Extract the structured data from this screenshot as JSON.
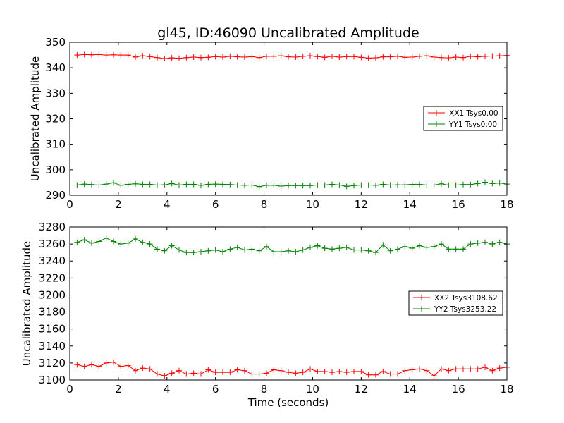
{
  "chart_data": [
    {
      "type": "line",
      "title": "gl45, ID:46090 Uncalibrated Amplitude",
      "xlabel": "",
      "ylabel": "Uncalibrated Amplitude",
      "xlim": [
        0,
        18
      ],
      "ylim": [
        290,
        350
      ],
      "xticks": [
        0,
        2,
        4,
        6,
        8,
        10,
        12,
        14,
        16,
        18
      ],
      "yticks": [
        290,
        300,
        310,
        320,
        330,
        340,
        350
      ],
      "grid": false,
      "legend_position": "center-right",
      "x": [
        0.3,
        0.6,
        0.9,
        1.2,
        1.5,
        1.8,
        2.1,
        2.4,
        2.7,
        3.0,
        3.3,
        3.6,
        3.9,
        4.2,
        4.5,
        4.8,
        5.1,
        5.4,
        5.7,
        6.0,
        6.3,
        6.6,
        6.9,
        7.2,
        7.5,
        7.8,
        8.1,
        8.4,
        8.7,
        9.0,
        9.3,
        9.6,
        9.9,
        10.2,
        10.5,
        10.8,
        11.1,
        11.4,
        11.7,
        12.0,
        12.3,
        12.6,
        12.9,
        13.2,
        13.5,
        13.8,
        14.1,
        14.4,
        14.7,
        15.0,
        15.3,
        15.6,
        15.9,
        16.2,
        16.5,
        16.8,
        17.1,
        17.4,
        17.7,
        18.0
      ],
      "series": [
        {
          "name": "XX1 Tsys0.00",
          "color": "#ff0000",
          "values": [
            345.0,
            345.2,
            345.1,
            345.2,
            345.0,
            345.1,
            345.0,
            345.0,
            344.2,
            344.7,
            344.4,
            344.0,
            343.6,
            343.9,
            343.7,
            344.0,
            344.2,
            344.0,
            344.1,
            344.4,
            344.2,
            344.5,
            344.3,
            344.2,
            344.4,
            344.0,
            344.5,
            344.5,
            344.7,
            344.3,
            344.2,
            344.5,
            344.7,
            344.4,
            344.1,
            344.5,
            344.2,
            344.4,
            344.4,
            344.1,
            343.8,
            343.9,
            344.3,
            344.3,
            344.5,
            344.1,
            344.2,
            344.5,
            344.7,
            344.2,
            344.0,
            343.9,
            344.2,
            344.0,
            344.5,
            344.3,
            344.5,
            344.6,
            344.7,
            344.8
          ]
        },
        {
          "name": "YY1 Tsys0.00",
          "color": "#008000",
          "values": [
            294.0,
            294.4,
            294.2,
            294.0,
            294.4,
            294.9,
            293.9,
            294.3,
            294.5,
            294.3,
            294.3,
            294.0,
            294.1,
            294.6,
            294.0,
            294.3,
            294.3,
            293.9,
            294.3,
            294.4,
            294.3,
            294.2,
            294.0,
            293.9,
            294.0,
            293.4,
            293.9,
            293.9,
            293.6,
            293.8,
            293.8,
            293.8,
            293.8,
            294.0,
            294.0,
            294.3,
            294.0,
            293.5,
            293.8,
            294.0,
            294.0,
            293.9,
            294.3,
            294.0,
            294.1,
            294.1,
            294.3,
            294.3,
            294.0,
            294.0,
            294.5,
            294.0,
            294.0,
            294.2,
            294.2,
            294.6,
            295.1,
            294.6,
            294.8,
            294.4
          ]
        }
      ]
    },
    {
      "type": "line",
      "title": "",
      "xlabel": "Time (seconds)",
      "ylabel": "Uncalibrated Amplitude",
      "xlim": [
        0,
        18
      ],
      "ylim": [
        3100,
        3280
      ],
      "xticks": [
        0,
        2,
        4,
        6,
        8,
        10,
        12,
        14,
        16,
        18
      ],
      "yticks": [
        3100,
        3120,
        3140,
        3160,
        3180,
        3200,
        3220,
        3240,
        3260,
        3280
      ],
      "grid": false,
      "legend_position": "center-right",
      "x": [
        0.3,
        0.6,
        0.9,
        1.2,
        1.5,
        1.8,
        2.1,
        2.4,
        2.7,
        3.0,
        3.3,
        3.6,
        3.9,
        4.2,
        4.5,
        4.8,
        5.1,
        5.4,
        5.7,
        6.0,
        6.3,
        6.6,
        6.9,
        7.2,
        7.5,
        7.8,
        8.1,
        8.4,
        8.7,
        9.0,
        9.3,
        9.6,
        9.9,
        10.2,
        10.5,
        10.8,
        11.1,
        11.4,
        11.7,
        12.0,
        12.3,
        12.6,
        12.9,
        13.2,
        13.5,
        13.8,
        14.1,
        14.4,
        14.7,
        15.0,
        15.3,
        15.6,
        15.9,
        16.2,
        16.5,
        16.8,
        17.1,
        17.4,
        17.7,
        18.0
      ],
      "series": [
        {
          "name": "XX2 Tsys3108.62",
          "color": "#ff0000",
          "values": [
            3118,
            3116,
            3118,
            3116,
            3120,
            3121,
            3116,
            3117,
            3111,
            3114,
            3113,
            3107,
            3105,
            3108,
            3111,
            3107,
            3108,
            3107,
            3112,
            3109,
            3109,
            3109,
            3112,
            3111,
            3107,
            3107,
            3108,
            3112,
            3111,
            3109,
            3108,
            3109,
            3113,
            3110,
            3110,
            3109,
            3110,
            3109,
            3110,
            3110,
            3106,
            3106,
            3110,
            3107,
            3107,
            3111,
            3112,
            3113,
            3111,
            3105,
            3113,
            3111,
            3113,
            3113,
            3113,
            3113,
            3115,
            3111,
            3114,
            3115
          ]
        },
        {
          "name": "YY2 Tsys3253.22",
          "color": "#008000",
          "values": [
            3262,
            3265,
            3261,
            3263,
            3267,
            3263,
            3260,
            3261,
            3266,
            3262,
            3260,
            3254,
            3252,
            3258,
            3253,
            3250,
            3250,
            3251,
            3252,
            3253,
            3251,
            3254,
            3256,
            3253,
            3254,
            3252,
            3257,
            3251,
            3251,
            3252,
            3251,
            3253,
            3256,
            3258,
            3255,
            3254,
            3255,
            3256,
            3253,
            3253,
            3252,
            3250,
            3259,
            3252,
            3254,
            3257,
            3255,
            3258,
            3256,
            3257,
            3260,
            3254,
            3254,
            3254,
            3260,
            3261,
            3262,
            3260,
            3262,
            3260
          ]
        }
      ]
    }
  ]
}
